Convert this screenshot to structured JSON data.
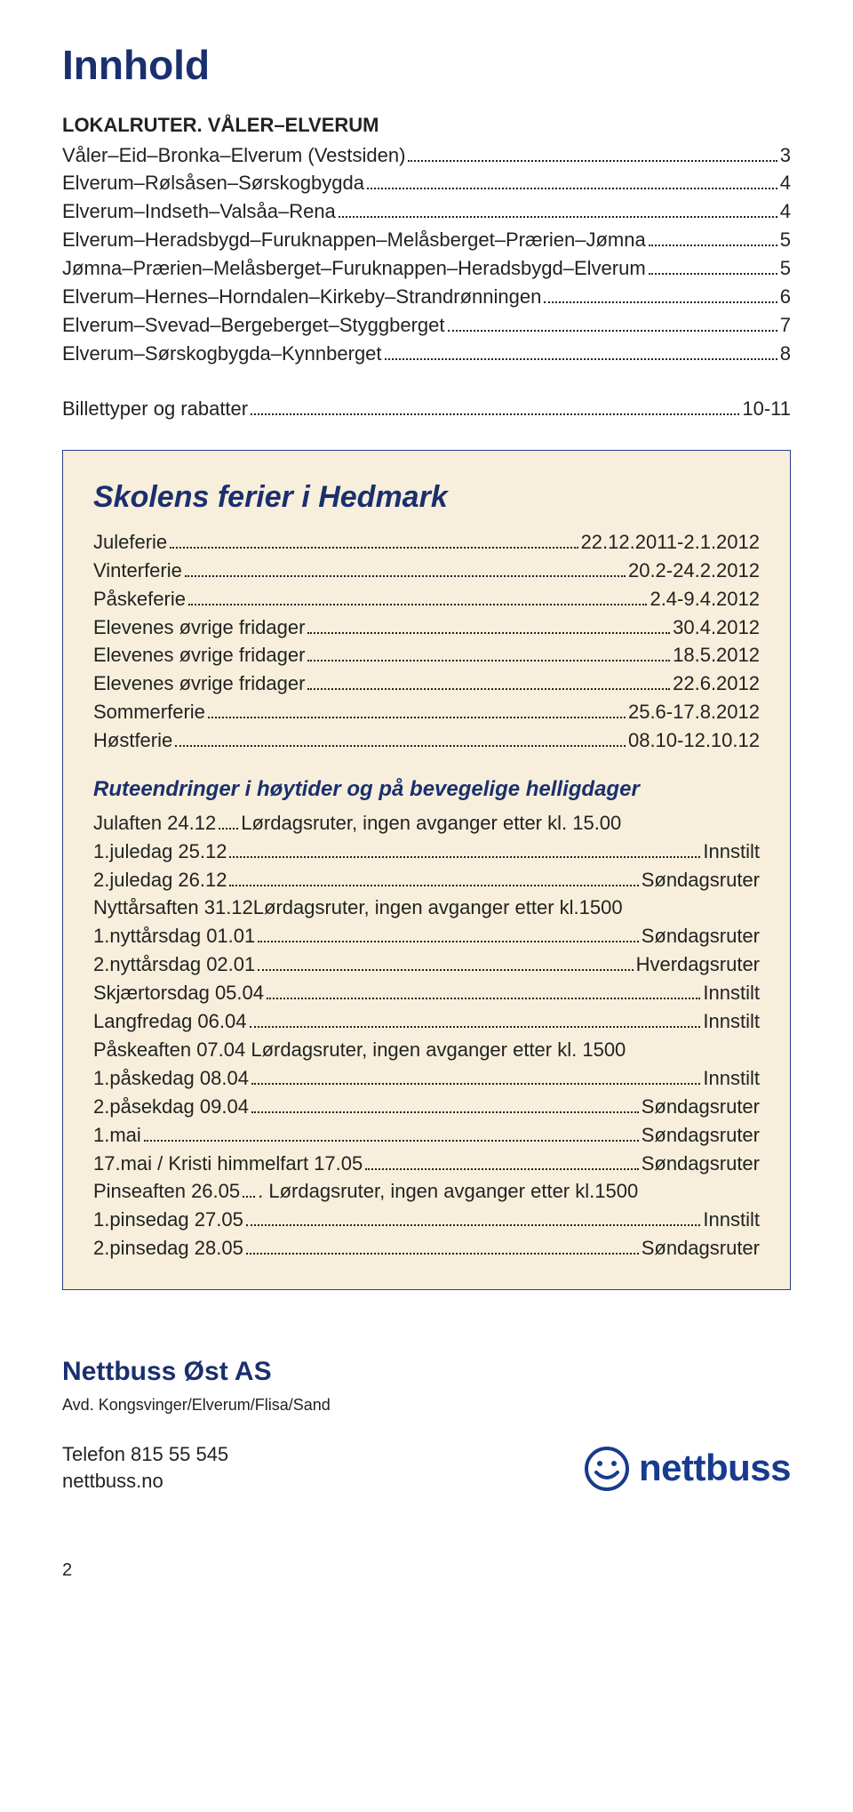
{
  "title": "Innhold",
  "toc": {
    "heading": "LOKALRUTER. VÅLER–ELVERUM",
    "items": [
      {
        "label": "Våler–Eid–Bronka–Elverum (Vestsiden)",
        "page": "3"
      },
      {
        "label": "Elverum–Rølsåsen–Sørskogbygda",
        "page": "4"
      },
      {
        "label": "Elverum–Indseth–Valsåa–Rena",
        "page": "4"
      },
      {
        "label": "Elverum–Heradsbygd–Furuknappen–Melåsberget–Prærien–Jømna",
        "page": "5"
      },
      {
        "label": "Jømna–Prærien–Melåsberget–Furuknappen–Heradsbygd–Elverum",
        "page": "5"
      },
      {
        "label": "Elverum–Hernes–Horndalen–Kirkeby–Strandrønningen",
        "page": "6"
      },
      {
        "label": "Elverum–Svevad–Bergeberget–Styggberget",
        "page": "7"
      },
      {
        "label": "Elverum–Sørskogbygda–Kynnberget",
        "page": "8"
      }
    ],
    "extra": {
      "label": "Billettyper og rabatter",
      "page": "10-11"
    }
  },
  "panel": {
    "title": "Skolens ferier i Hedmark",
    "ferie": [
      {
        "label": "Juleferie",
        "val": "22.12.2011-2.1.2012"
      },
      {
        "label": "Vinterferie",
        "val": "20.2-24.2.2012"
      },
      {
        "label": "Påskeferie",
        "val": "2.4-9.4.2012"
      },
      {
        "label": "Elevenes øvrige fridager",
        "val": "30.4.2012"
      },
      {
        "label": "Elevenes øvrige fridager",
        "val": "18.5.2012"
      },
      {
        "label": "Elevenes øvrige fridager",
        "val": "22.6.2012"
      },
      {
        "label": "Sommerferie",
        "val": "25.6-17.8.2012"
      },
      {
        "label": "Høstferie",
        "val": "08.10-12.10.12"
      }
    ],
    "sub": "Ruteendringer i høytider og på bevegelige helligdager",
    "routes": [
      {
        "label": "Julaften 24.12",
        "mid": "Lørdagsruter, ingen avganger etter kl. 15.00",
        "val": ""
      },
      {
        "label": "1.juledag 25.12",
        "val": "Innstilt"
      },
      {
        "label": "2.juledag 26.12",
        "val": "Søndagsruter"
      },
      {
        "label": "Nyttårsaften 31.12",
        "mid2": "Lørdagsruter, ingen avganger etter kl.1500",
        "val": ""
      },
      {
        "label": "1.nyttårsdag 01.01",
        "val": "Søndagsruter"
      },
      {
        "label": "2.nyttårsdag 02.01",
        "val": "Hverdagsruter"
      },
      {
        "label": "Skjærtorsdag 05.04",
        "val": "Innstilt"
      },
      {
        "label": "Langfredag 06.04",
        "val": "Innstilt"
      },
      {
        "label": "Påskeaften 07.04",
        "mid3": " Lørdagsruter, ingen avganger etter kl. 1500",
        "val": ""
      },
      {
        "label": "1.påskedag 08.04",
        "val": "Innstilt"
      },
      {
        "label": "2.påsekdag 09.04",
        "val": "Søndagsruter"
      },
      {
        "label": "1.mai",
        "val": "Søndagsruter"
      },
      {
        "label": "17.mai / Kristi himmelfart 17.05",
        "val": "Søndagsruter"
      },
      {
        "label": "Pinseaften 26.05",
        "mid4": " Lørdagsruter, ingen avganger etter kl.1500",
        "val": ""
      },
      {
        "label": "1.pinsedag 27.05",
        "val": "Innstilt"
      },
      {
        "label": "2.pinsedag 28.05",
        "val": "Søndagsruter"
      }
    ]
  },
  "company": {
    "name": "Nettbuss Øst AS",
    "dept": "Avd. Kongsvinger/Elverum/Flisa/Sand",
    "phone": "Telefon 815 55 545",
    "url": "nettbuss.no",
    "logo_text": "nettbuss",
    "logo_color": "#183b8e"
  },
  "page_number": "2"
}
